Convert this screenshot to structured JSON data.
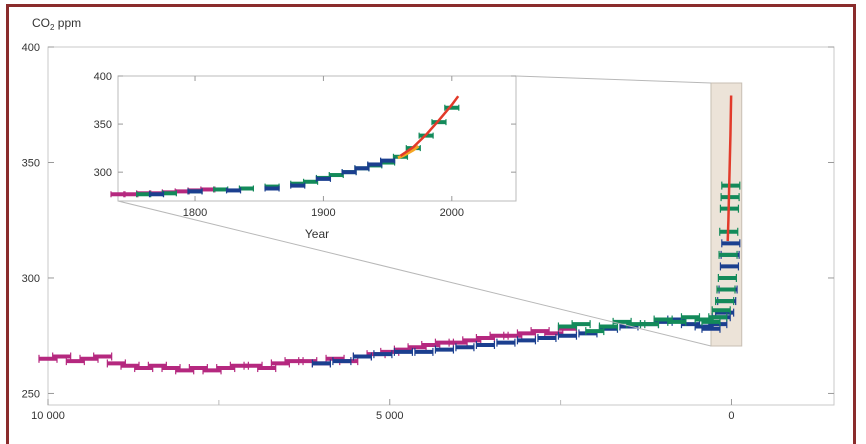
{
  "chart_data": [
    {
      "type": "scatter",
      "name_role": "main",
      "ylabel_main": "CO",
      "ylabel_sub": "2",
      "ylabel_unit": " ppm",
      "xlabel": "",
      "xlim": [
        10000,
        -1500
      ],
      "ylim": [
        245,
        400
      ],
      "x_ticks": [
        10000,
        5000,
        0
      ],
      "x_tick_labels": [
        "10 000",
        "5 000",
        "0"
      ],
      "y_ticks": [
        250,
        300,
        350,
        400
      ],
      "y_tick_labels": [
        "250",
        "300",
        "350",
        "400"
      ],
      "grid": false,
      "colors": {
        "magenta": "#b5287f",
        "green": "#138a5a",
        "blue": "#1b3f8f",
        "red": "#e23a2a",
        "orange": "#f5a623",
        "highlight": "#ece3d8"
      },
      "series": [
        {
          "color": "magenta",
          "x": [
            10000,
            9800,
            9600,
            9400,
            9200,
            9000,
            8800,
            8600,
            8400,
            8200,
            8000,
            7800,
            7600,
            7400,
            7200,
            7000,
            6800,
            6600,
            6400,
            6200,
            6000,
            5800,
            5600,
            5400,
            5200,
            5000,
            4800,
            4600,
            4400,
            4200,
            4000,
            3800,
            3600,
            3400,
            3200,
            3000,
            2800,
            2600,
            2400
          ],
          "y": [
            265,
            266,
            264,
            265,
            266,
            263,
            262,
            261,
            262,
            261,
            260,
            261,
            260,
            261,
            262,
            262,
            261,
            263,
            264,
            264,
            263,
            265,
            264,
            266,
            267,
            268,
            269,
            270,
            271,
            272,
            272,
            273,
            274,
            275,
            275,
            276,
            277,
            276,
            278
          ]
        },
        {
          "color": "blue",
          "x": [
            6000,
            5700,
            5400,
            5100,
            4800,
            4500,
            4200,
            3900,
            3600,
            3300,
            3000,
            2700,
            2400,
            2100,
            1800,
            1500,
            1200,
            1000,
            800,
            600,
            400,
            300,
            200,
            150,
            100,
            70,
            50,
            30,
            20,
            10
          ],
          "y": [
            263,
            264,
            266,
            267,
            268,
            268,
            269,
            270,
            271,
            272,
            273,
            274,
            275,
            276,
            278,
            279,
            280,
            281,
            282,
            280,
            279,
            278,
            280,
            283,
            285,
            290,
            295,
            305,
            310,
            315
          ]
        },
        {
          "color": "green",
          "x": [
            2400,
            2200,
            2000,
            1800,
            1600,
            1400,
            1200,
            1000,
            800,
            600,
            400,
            300,
            200,
            150,
            100,
            80,
            60,
            50,
            40,
            30,
            20,
            10
          ],
          "y": [
            279,
            280,
            277,
            279,
            281,
            280,
            280,
            282,
            281,
            283,
            282,
            281,
            283,
            286,
            290,
            295,
            300,
            310,
            320,
            330,
            335,
            340
          ]
        },
        {
          "color": "red",
          "x": [
            55,
            45,
            35,
            25,
            15,
            5
          ],
          "y": [
            316,
            325,
            338,
            350,
            362,
            379
          ]
        }
      ],
      "highlight_range_x": [
        300,
        -150
      ]
    },
    {
      "type": "scatter",
      "name_role": "inset",
      "xlabel": "Year",
      "ylabel": "",
      "xlim": [
        1740,
        2050
      ],
      "ylim": [
        270,
        400
      ],
      "x_ticks": [
        1800,
        1900,
        2000
      ],
      "x_tick_labels": [
        "1800",
        "1900",
        "2000"
      ],
      "y_ticks": [
        300,
        350,
        400
      ],
      "y_tick_labels": [
        "300",
        "350",
        "400"
      ],
      "grid": false,
      "series": [
        {
          "color": "magenta",
          "x": [
            1740,
            1750,
            1760,
            1770,
            1780,
            1790,
            1800,
            1810
          ],
          "y": [
            277,
            277,
            278,
            278,
            279,
            280,
            281,
            282
          ]
        },
        {
          "color": "green",
          "x": [
            1760,
            1780,
            1800,
            1820,
            1840,
            1860,
            1880,
            1890,
            1900,
            1910,
            1920,
            1930,
            1940,
            1950,
            1960,
            1970,
            1980,
            1990,
            2000
          ],
          "y": [
            277,
            278,
            280,
            282,
            283,
            285,
            288,
            290,
            294,
            297,
            300,
            304,
            307,
            310,
            316,
            325,
            338,
            352,
            367
          ]
        },
        {
          "color": "blue",
          "x": [
            1770,
            1800,
            1830,
            1860,
            1880,
            1900,
            1920,
            1930,
            1940,
            1950
          ],
          "y": [
            277,
            280,
            281,
            283,
            286,
            293,
            300,
            304,
            308,
            312
          ]
        },
        {
          "color": "orange",
          "x": [
            1958,
            1962,
            1966,
            1970,
            1974
          ],
          "y": [
            315,
            317,
            320,
            323,
            327
          ]
        },
        {
          "color": "red",
          "x": [
            1960,
            1970,
            1980,
            1990,
            2000,
            2005
          ],
          "y": [
            317,
            326,
            339,
            354,
            370,
            379
          ]
        }
      ]
    }
  ]
}
